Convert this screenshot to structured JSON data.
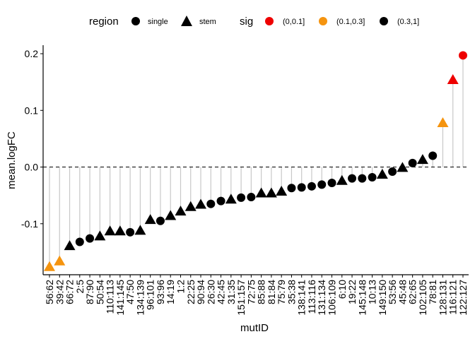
{
  "chart_data": {
    "type": "scatter",
    "subtype": "lollipop",
    "xlabel": "mutID",
    "ylabel": "mean.logFC",
    "ylim": [
      -0.19,
      0.215
    ],
    "yticks": [
      -0.1,
      0.0,
      0.1,
      0.2
    ],
    "ytick_labels": [
      "-0.1",
      "0.0",
      "0.1",
      "0.2"
    ],
    "reference_line": 0.0,
    "grid": false,
    "legend_position": "top",
    "legend": {
      "region": {
        "title": "region",
        "entries": [
          {
            "label": "single",
            "shape": "circle"
          },
          {
            "label": "stem",
            "shape": "triangle"
          }
        ]
      },
      "sig": {
        "title": "sig",
        "entries": [
          {
            "label": "(0,0.1]",
            "color": "#EE0000"
          },
          {
            "label": "(0.1,0.3]",
            "color": "#F5940F"
          },
          {
            "label": "(0.3,1]",
            "color": "#000000"
          }
        ]
      }
    },
    "colors": {
      "(0,0.1]": "#EE0000",
      "(0.1,0.3]": "#F5940F",
      "(0.3,1]": "#000000",
      "stem_line": "#C8C8C8"
    },
    "points": [
      {
        "mutID": "56:62",
        "value": -0.176,
        "region": "stem",
        "sig": "(0.1,0.3]"
      },
      {
        "mutID": "39:42",
        "value": -0.166,
        "region": "stem",
        "sig": "(0.1,0.3]"
      },
      {
        "mutID": "66:72",
        "value": -0.139,
        "region": "stem",
        "sig": "(0.3,1]"
      },
      {
        "mutID": "2:5",
        "value": -0.132,
        "region": "single",
        "sig": "(0.3,1]"
      },
      {
        "mutID": "87:90",
        "value": -0.126,
        "region": "single",
        "sig": "(0.3,1]"
      },
      {
        "mutID": "50:54",
        "value": -0.122,
        "region": "stem",
        "sig": "(0.3,1]"
      },
      {
        "mutID": "110:113",
        "value": -0.113,
        "region": "stem",
        "sig": "(0.3,1]"
      },
      {
        "mutID": "141:145",
        "value": -0.113,
        "region": "stem",
        "sig": "(0.3,1]"
      },
      {
        "mutID": "47:50",
        "value": -0.115,
        "region": "single",
        "sig": "(0.3,1]"
      },
      {
        "mutID": "134:139",
        "value": -0.112,
        "region": "stem",
        "sig": "(0.3,1]"
      },
      {
        "mutID": "96:101",
        "value": -0.093,
        "region": "stem",
        "sig": "(0.3,1]"
      },
      {
        "mutID": "93:96",
        "value": -0.095,
        "region": "single",
        "sig": "(0.3,1]"
      },
      {
        "mutID": "14:19",
        "value": -0.086,
        "region": "stem",
        "sig": "(0.3,1]"
      },
      {
        "mutID": "1:2",
        "value": -0.078,
        "region": "stem",
        "sig": "(0.3,1]"
      },
      {
        "mutID": "22:25",
        "value": -0.07,
        "region": "stem",
        "sig": "(0.3,1]"
      },
      {
        "mutID": "90:94",
        "value": -0.066,
        "region": "stem",
        "sig": "(0.3,1]"
      },
      {
        "mutID": "26:30",
        "value": -0.065,
        "region": "single",
        "sig": "(0.3,1]"
      },
      {
        "mutID": "42:45",
        "value": -0.06,
        "region": "single",
        "sig": "(0.3,1]"
      },
      {
        "mutID": "31:35",
        "value": -0.057,
        "region": "stem",
        "sig": "(0.3,1]"
      },
      {
        "mutID": "151:157",
        "value": -0.054,
        "region": "single",
        "sig": "(0.3,1]"
      },
      {
        "mutID": "72:75",
        "value": -0.053,
        "region": "single",
        "sig": "(0.3,1]"
      },
      {
        "mutID": "85:88",
        "value": -0.046,
        "region": "stem",
        "sig": "(0.3,1]"
      },
      {
        "mutID": "81:84",
        "value": -0.046,
        "region": "stem",
        "sig": "(0.3,1]"
      },
      {
        "mutID": "75:79",
        "value": -0.043,
        "region": "stem",
        "sig": "(0.3,1]"
      },
      {
        "mutID": "35:38",
        "value": -0.037,
        "region": "single",
        "sig": "(0.3,1]"
      },
      {
        "mutID": "138:141",
        "value": -0.036,
        "region": "single",
        "sig": "(0.3,1]"
      },
      {
        "mutID": "113:116",
        "value": -0.034,
        "region": "single",
        "sig": "(0.3,1]"
      },
      {
        "mutID": "131:134",
        "value": -0.031,
        "region": "single",
        "sig": "(0.3,1]"
      },
      {
        "mutID": "106:109",
        "value": -0.028,
        "region": "single",
        "sig": "(0.3,1]"
      },
      {
        "mutID": "6:10",
        "value": -0.024,
        "region": "stem",
        "sig": "(0.3,1]"
      },
      {
        "mutID": "19:22",
        "value": -0.02,
        "region": "single",
        "sig": "(0.3,1]"
      },
      {
        "mutID": "145:148",
        "value": -0.02,
        "region": "single",
        "sig": "(0.3,1]"
      },
      {
        "mutID": "10:13",
        "value": -0.018,
        "region": "single",
        "sig": "(0.3,1]"
      },
      {
        "mutID": "149:150",
        "value": -0.013,
        "region": "stem",
        "sig": "(0.3,1]"
      },
      {
        "mutID": "53:56",
        "value": -0.008,
        "region": "single",
        "sig": "(0.3,1]"
      },
      {
        "mutID": "45:48",
        "value": -0.001,
        "region": "stem",
        "sig": "(0.3,1]"
      },
      {
        "mutID": "62:65",
        "value": 0.007,
        "region": "single",
        "sig": "(0.3,1]"
      },
      {
        "mutID": "102:105",
        "value": 0.013,
        "region": "stem",
        "sig": "(0.3,1]"
      },
      {
        "mutID": "78:81",
        "value": 0.02,
        "region": "single",
        "sig": "(0.3,1]"
      },
      {
        "mutID": "128:131",
        "value": 0.078,
        "region": "stem",
        "sig": "(0.1,0.3]"
      },
      {
        "mutID": "116:121",
        "value": 0.154,
        "region": "stem",
        "sig": "(0,0.1]"
      },
      {
        "mutID": "122:127",
        "value": 0.197,
        "region": "single",
        "sig": "(0,0.1]"
      }
    ]
  }
}
